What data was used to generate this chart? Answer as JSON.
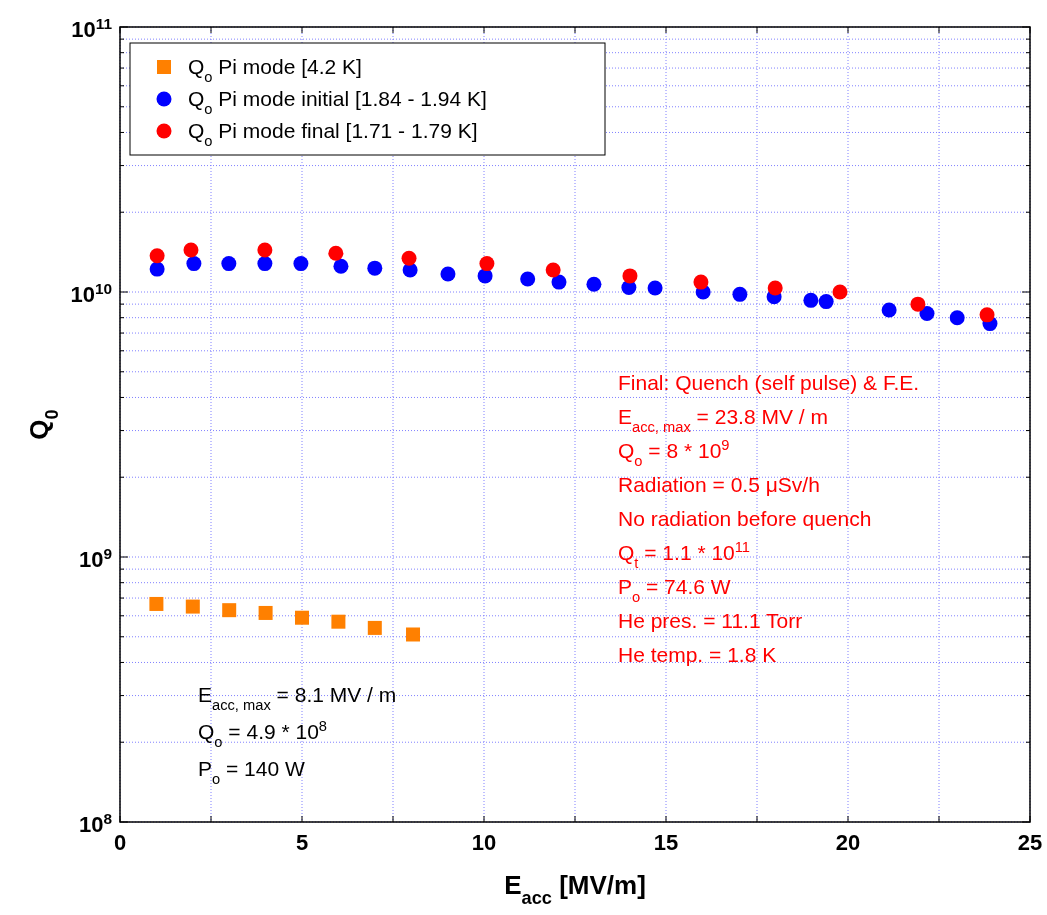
{
  "chart_data": {
    "type": "scatter",
    "xlabel": "E$_{acc}$ [MV/m]",
    "ylabel": "Q$_{0}$",
    "log": "y",
    "grid": true,
    "legend": "top left",
    "xlim": [
      0,
      25
    ],
    "xticks": [
      0,
      {
        "value": 2.5,
        "label": null
      },
      5,
      {
        "value": 7.5,
        "label": null
      },
      10,
      {
        "value": 12.5,
        "label": null
      },
      15,
      {
        "value": 17.5,
        "label": null
      },
      20,
      {
        "value": 22.5,
        "label": null
      },
      25
    ],
    "ylim": [
      100000000.0,
      100000000000.0
    ],
    "yticks": [
      {
        "value": 100000000.0,
        "label": "10$^{8}$"
      },
      {
        "value": 200000000.0,
        "label": null
      },
      {
        "value": 300000000.0,
        "label": null
      },
      {
        "value": 400000000.0,
        "label": null
      },
      {
        "value": 500000000.0,
        "label": null
      },
      {
        "value": 600000000.0,
        "label": null
      },
      {
        "value": 700000000.0,
        "label": null
      },
      {
        "value": 800000000.0,
        "label": null
      },
      {
        "value": 900000000.0,
        "label": null
      },
      {
        "value": 1000000000.0,
        "label": "10$^{9}$"
      },
      {
        "value": 2000000000.0,
        "label": null
      },
      {
        "value": 3000000000.0,
        "label": null
      },
      {
        "value": 4000000000.0,
        "label": null
      },
      {
        "value": 5000000000.0,
        "label": null
      },
      {
        "value": 6000000000.0,
        "label": null
      },
      {
        "value": 7000000000.0,
        "label": null
      },
      {
        "value": 8000000000.0,
        "label": null
      },
      {
        "value": 9000000000.0,
        "label": null
      },
      {
        "value": 10000000000.0,
        "label": "10$^{10}$"
      },
      {
        "value": 20000000000.0,
        "label": null
      },
      {
        "value": 30000000000.0,
        "label": null
      },
      {
        "value": 40000000000.0,
        "label": null
      },
      {
        "value": 50000000000.0,
        "label": null
      },
      {
        "value": 60000000000.0,
        "label": null
      },
      {
        "value": 70000000000.0,
        "label": null
      },
      {
        "value": 80000000000.0,
        "label": null
      },
      {
        "value": 90000000000.0,
        "label": null
      },
      {
        "value": 100000000000.0,
        "label": "10$^{11}$"
      }
    ],
    "series": [
      {
        "name": "Q$_{o}$ Pi mode [4.2 K]",
        "color": "#ff8000",
        "marker": "square",
        "x": [
          1,
          2,
          3,
          4,
          5,
          6,
          7,
          8.05
        ],
        "values": [
          665000000.0,
          650000000.0,
          630000000.0,
          615000000.0,
          590000000.0,
          570000000.0,
          540000000.0,
          510000000.0
        ]
      },
      {
        "name": "Q$_{o}$ Pi mode initial [1.84 - 1.94 K]",
        "color": "#0000ff",
        "marker": "circle",
        "x": [
          1.02,
          2.03,
          2.99,
          3.98,
          4.97,
          6.07,
          7.0,
          7.97,
          9.01,
          10.03,
          11.2,
          12.06,
          13.02,
          13.98,
          14.7,
          16.02,
          17.03,
          17.97,
          18.98,
          19.4,
          21.13,
          22.17,
          23.0,
          23.9
        ],
        "values": [
          12200000000.0,
          12800000000.0,
          12800000000.0,
          12800000000.0,
          12800000000.0,
          12500000000.0,
          12300000000.0,
          12100000000.0,
          11700000000.0,
          11500000000.0,
          11200000000.0,
          10900000000.0,
          10700000000.0,
          10400000000.0,
          10350000000.0,
          10000000000.0,
          9800000000.0,
          9600000000.0,
          9300000000.0,
          9200000000.0,
          8550000000.0,
          8300000000.0,
          8000000000.0,
          7600000000.0
        ]
      },
      {
        "name": "Q$_{o}$ Pi mode final [1.71 - 1.79 K]",
        "color": "#ff0000",
        "marker": "circle",
        "x": [
          1.02,
          1.95,
          3.98,
          5.93,
          7.94,
          10.08,
          11.9,
          14.01,
          15.96,
          18.0,
          19.78,
          21.92,
          23.82
        ],
        "values": [
          13700000000.0,
          14400000000.0,
          14400000000.0,
          14000000000.0,
          13400000000.0,
          12800000000.0,
          12100000000.0,
          11500000000.0,
          10900000000.0,
          10350000000.0,
          10000000000.0,
          9000000000.0,
          8200000000.0
        ]
      }
    ],
    "annotations": [
      "Final: Quench (self pulse) & F.E.",
      "E$_{acc, max}$ = 23.8 MV / m",
      "Q$_{o}$ = 8 * 10$^{9}$",
      "Radiation = 0.5 μSv/h",
      "No radiation before quench",
      "Q$_{t}$ = 1.1 * 10$^{11}$",
      "P$_{o}$ = 74.6 W",
      "He pres. = 11.1 Torr",
      "He temp. = 1.8 K",
      "E$_{acc, max}$ = 8.1 MV / m",
      "Q$_{o}$ = 4.9 * 10$^{8}$",
      "P$_{o}$ = 140 W"
    ]
  }
}
